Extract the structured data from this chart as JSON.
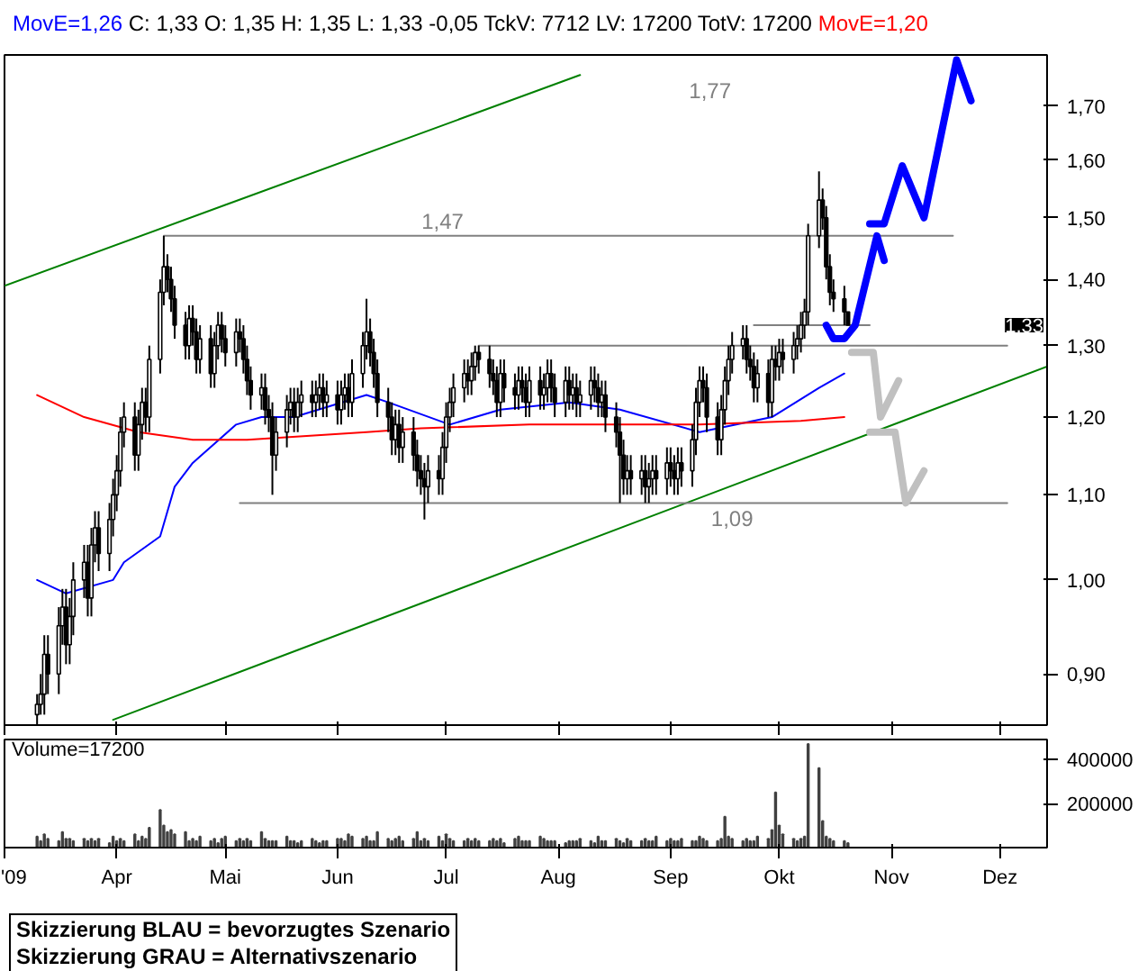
{
  "chart_data": [
    {
      "type": "candlestick",
      "title": "C: 1,33 O: 1,35 H: 1,35 L: 1,33 -0,05 TckV: 7712 LV: 17200 TotV: 17200",
      "log": true,
      "tick_labels": "y",
      "xlim": [
        "2009-03-01",
        "2009-12-14"
      ],
      "ylim": [
        0.85,
        1.8
      ],
      "xticks": [
        {
          "value": "2009-03-01",
          "label": null
        },
        {
          "value": "2009-04-01",
          "label": null
        },
        {
          "value": "2009-05-01",
          "label": null
        },
        {
          "value": "2009-06-01",
          "label": null
        },
        {
          "value": "2009-07-01",
          "label": null
        },
        {
          "value": "2009-08-01",
          "label": null
        },
        {
          "value": "2009-09-01",
          "label": null
        },
        {
          "value": "2009-10-01",
          "label": null
        },
        {
          "value": "2009-11-01",
          "label": null
        },
        {
          "value": "2009-12-01",
          "label": null
        }
      ],
      "yticks": [
        {
          "value": 0.9,
          "label": "0,90"
        },
        {
          "value": 1.0,
          "label": "1,00"
        },
        {
          "value": 1.1,
          "label": "1,10"
        },
        {
          "value": 1.2,
          "label": "1,20"
        },
        {
          "value": 1.3,
          "label": "1,30"
        },
        {
          "value": 1.4,
          "label": "1,40"
        },
        {
          "value": 1.5,
          "label": "1,50"
        },
        {
          "value": 1.6,
          "label": "1,60"
        },
        {
          "value": 1.7,
          "label": "1,70"
        }
      ],
      "x": [
        "2009-03-10",
        "2009-03-11",
        "2009-03-12",
        "2009-03-13",
        "2009-03-16",
        "2009-03-17",
        "2009-03-18",
        "2009-03-19",
        "2009-03-20",
        "2009-03-23",
        "2009-03-24",
        "2009-03-25",
        "2009-03-26",
        "2009-03-27",
        "2009-03-30",
        "2009-03-31",
        "2009-04-01",
        "2009-04-02",
        "2009-04-03",
        "2009-04-06",
        "2009-04-07",
        "2009-04-08",
        "2009-04-09",
        "2009-04-10",
        "2009-04-13",
        "2009-04-14",
        "2009-04-15",
        "2009-04-16",
        "2009-04-17",
        "2009-04-20",
        "2009-04-21",
        "2009-04-22",
        "2009-04-23",
        "2009-04-24",
        "2009-04-27",
        "2009-04-28",
        "2009-04-29",
        "2009-04-30",
        "2009-05-01",
        "2009-05-04",
        "2009-05-05",
        "2009-05-06",
        "2009-05-07",
        "2009-05-08",
        "2009-05-11",
        "2009-05-12",
        "2009-05-13",
        "2009-05-14",
        "2009-05-15",
        "2009-05-18",
        "2009-05-19",
        "2009-05-20",
        "2009-05-21",
        "2009-05-22",
        "2009-05-25",
        "2009-05-26",
        "2009-05-27",
        "2009-05-28",
        "2009-05-29",
        "2009-06-01",
        "2009-06-02",
        "2009-06-03",
        "2009-06-04",
        "2009-06-05",
        "2009-06-08",
        "2009-06-09",
        "2009-06-10",
        "2009-06-11",
        "2009-06-12",
        "2009-06-15",
        "2009-06-16",
        "2009-06-17",
        "2009-06-18",
        "2009-06-19",
        "2009-06-22",
        "2009-06-23",
        "2009-06-24",
        "2009-06-25",
        "2009-06-26",
        "2009-06-29",
        "2009-06-30",
        "2009-07-01",
        "2009-07-02",
        "2009-07-03",
        "2009-07-06",
        "2009-07-07",
        "2009-07-08",
        "2009-07-09",
        "2009-07-10",
        "2009-07-13",
        "2009-07-14",
        "2009-07-15",
        "2009-07-16",
        "2009-07-17",
        "2009-07-20",
        "2009-07-21",
        "2009-07-22",
        "2009-07-23",
        "2009-07-24",
        "2009-07-27",
        "2009-07-28",
        "2009-07-29",
        "2009-07-30",
        "2009-07-31",
        "2009-08-03",
        "2009-08-04",
        "2009-08-05",
        "2009-08-06",
        "2009-08-07",
        "2009-08-10",
        "2009-08-11",
        "2009-08-12",
        "2009-08-13",
        "2009-08-14",
        "2009-08-17",
        "2009-08-18",
        "2009-08-19",
        "2009-08-20",
        "2009-08-21",
        "2009-08-24",
        "2009-08-25",
        "2009-08-26",
        "2009-08-27",
        "2009-08-28",
        "2009-08-31",
        "2009-09-01",
        "2009-09-02",
        "2009-09-03",
        "2009-09-04",
        "2009-09-07",
        "2009-09-08",
        "2009-09-09",
        "2009-09-10",
        "2009-09-11",
        "2009-09-14",
        "2009-09-15",
        "2009-09-16",
        "2009-09-17",
        "2009-09-18",
        "2009-09-21",
        "2009-09-22",
        "2009-09-23",
        "2009-09-24",
        "2009-09-25",
        "2009-09-28",
        "2009-09-29",
        "2009-09-30",
        "2009-10-01",
        "2009-10-02",
        "2009-10-05",
        "2009-10-06",
        "2009-10-07",
        "2009-10-08",
        "2009-10-09",
        "2009-10-12",
        "2009-10-13",
        "2009-10-14",
        "2009-10-15",
        "2009-10-16",
        "2009-10-19",
        "2009-10-20"
      ],
      "ohlc": [
        [
          0.86,
          0.88,
          0.85,
          0.87
        ],
        [
          0.87,
          0.9,
          0.86,
          0.88
        ],
        [
          0.88,
          0.94,
          0.86,
          0.92
        ],
        [
          0.92,
          0.94,
          0.88,
          0.9
        ],
        [
          0.9,
          0.97,
          0.88,
          0.95
        ],
        [
          0.95,
          0.99,
          0.93,
          0.97
        ],
        [
          0.97,
          0.99,
          0.91,
          0.93
        ],
        [
          0.93,
          0.98,
          0.91,
          0.96
        ],
        [
          0.96,
          1.02,
          0.94,
          1.0
        ],
        [
          1.0,
          1.04,
          0.98,
          1.02
        ],
        [
          1.02,
          1.04,
          0.96,
          0.98
        ],
        [
          0.98,
          1.06,
          0.96,
          1.04
        ],
        [
          1.04,
          1.08,
          1.02,
          1.06
        ],
        [
          1.06,
          1.08,
          1.01,
          1.03
        ],
        [
          1.03,
          1.09,
          1.01,
          1.07
        ],
        [
          1.07,
          1.12,
          1.05,
          1.1
        ],
        [
          1.1,
          1.15,
          1.08,
          1.13
        ],
        [
          1.13,
          1.2,
          1.11,
          1.18
        ],
        [
          1.18,
          1.22,
          1.16,
          1.2
        ],
        [
          1.2,
          1.22,
          1.13,
          1.15
        ],
        [
          1.15,
          1.21,
          1.13,
          1.19
        ],
        [
          1.19,
          1.24,
          1.17,
          1.22
        ],
        [
          1.22,
          1.24,
          1.18,
          1.2
        ],
        [
          1.2,
          1.3,
          1.18,
          1.28
        ],
        [
          1.28,
          1.4,
          1.26,
          1.38
        ],
        [
          1.38,
          1.47,
          1.36,
          1.42
        ],
        [
          1.42,
          1.44,
          1.38,
          1.4
        ],
        [
          1.4,
          1.42,
          1.35,
          1.37
        ],
        [
          1.37,
          1.39,
          1.31,
          1.33
        ],
        [
          1.33,
          1.35,
          1.28,
          1.3
        ],
        [
          1.3,
          1.36,
          1.28,
          1.34
        ],
        [
          1.34,
          1.36,
          1.3,
          1.32
        ],
        [
          1.32,
          1.34,
          1.26,
          1.28
        ],
        [
          1.28,
          1.33,
          1.26,
          1.31
        ],
        [
          1.31,
          1.33,
          1.24,
          1.26
        ],
        [
          1.26,
          1.32,
          1.24,
          1.3
        ],
        [
          1.3,
          1.35,
          1.28,
          1.33
        ],
        [
          1.33,
          1.35,
          1.29,
          1.31
        ],
        [
          1.31,
          1.33,
          1.27,
          1.29
        ],
        [
          1.29,
          1.34,
          1.27,
          1.32
        ],
        [
          1.32,
          1.34,
          1.29,
          1.31
        ],
        [
          1.31,
          1.33,
          1.26,
          1.28
        ],
        [
          1.28,
          1.3,
          1.23,
          1.25
        ],
        [
          1.25,
          1.27,
          1.21,
          1.23
        ],
        [
          1.23,
          1.26,
          1.21,
          1.24
        ],
        [
          1.24,
          1.26,
          1.19,
          1.21
        ],
        [
          1.21,
          1.23,
          1.18,
          1.2
        ],
        [
          1.2,
          1.22,
          1.1,
          1.15
        ],
        [
          1.15,
          1.2,
          1.13,
          1.18
        ],
        [
          1.18,
          1.23,
          1.16,
          1.21
        ],
        [
          1.21,
          1.24,
          1.19,
          1.22
        ],
        [
          1.22,
          1.24,
          1.18,
          1.2
        ],
        [
          1.2,
          1.24,
          1.18,
          1.22
        ],
        [
          1.22,
          1.25,
          1.2,
          1.23
        ],
        [
          1.23,
          1.25,
          1.2,
          1.22
        ],
        [
          1.22,
          1.25,
          1.2,
          1.23
        ],
        [
          1.23,
          1.26,
          1.21,
          1.24
        ],
        [
          1.24,
          1.26,
          1.2,
          1.22
        ],
        [
          1.22,
          1.25,
          1.2,
          1.23
        ],
        [
          1.23,
          1.25,
          1.19,
          1.21
        ],
        [
          1.21,
          1.25,
          1.19,
          1.23
        ],
        [
          1.23,
          1.26,
          1.21,
          1.24
        ],
        [
          1.24,
          1.26,
          1.2,
          1.22
        ],
        [
          1.22,
          1.28,
          1.2,
          1.26
        ],
        [
          1.26,
          1.32,
          1.24,
          1.3
        ],
        [
          1.3,
          1.37,
          1.28,
          1.32
        ],
        [
          1.32,
          1.34,
          1.27,
          1.29
        ],
        [
          1.29,
          1.31,
          1.24,
          1.26
        ],
        [
          1.26,
          1.28,
          1.2,
          1.22
        ],
        [
          1.22,
          1.24,
          1.18,
          1.2
        ],
        [
          1.2,
          1.22,
          1.15,
          1.17
        ],
        [
          1.17,
          1.21,
          1.15,
          1.19
        ],
        [
          1.19,
          1.21,
          1.14,
          1.16
        ],
        [
          1.16,
          1.2,
          1.14,
          1.18
        ],
        [
          1.18,
          1.2,
          1.13,
          1.15
        ],
        [
          1.15,
          1.17,
          1.11,
          1.13
        ],
        [
          1.13,
          1.15,
          1.1,
          1.12
        ],
        [
          1.12,
          1.14,
          1.07,
          1.11
        ],
        [
          1.11,
          1.15,
          1.09,
          1.13
        ],
        [
          1.13,
          1.15,
          1.1,
          1.12
        ],
        [
          1.12,
          1.18,
          1.1,
          1.16
        ],
        [
          1.16,
          1.22,
          1.14,
          1.2
        ],
        [
          1.2,
          1.24,
          1.18,
          1.22
        ],
        [
          1.22,
          1.26,
          1.2,
          1.24
        ],
        [
          1.24,
          1.28,
          1.22,
          1.26
        ],
        [
          1.26,
          1.28,
          1.23,
          1.25
        ],
        [
          1.25,
          1.29,
          1.23,
          1.27
        ],
        [
          1.27,
          1.3,
          1.25,
          1.29
        ],
        [
          1.29,
          1.3,
          1.26,
          1.28
        ],
        [
          1.28,
          1.3,
          1.24,
          1.26
        ],
        [
          1.26,
          1.28,
          1.23,
          1.25
        ],
        [
          1.25,
          1.27,
          1.2,
          1.22
        ],
        [
          1.22,
          1.28,
          1.2,
          1.26
        ],
        [
          1.26,
          1.28,
          1.22,
          1.24
        ],
        [
          1.24,
          1.26,
          1.21,
          1.23
        ],
        [
          1.23,
          1.27,
          1.21,
          1.25
        ],
        [
          1.25,
          1.27,
          1.22,
          1.24
        ],
        [
          1.24,
          1.26,
          1.2,
          1.22
        ],
        [
          1.22,
          1.27,
          1.2,
          1.25
        ],
        [
          1.25,
          1.27,
          1.21,
          1.23
        ],
        [
          1.23,
          1.26,
          1.21,
          1.24
        ],
        [
          1.24,
          1.28,
          1.22,
          1.26
        ],
        [
          1.26,
          1.28,
          1.22,
          1.24
        ],
        [
          1.24,
          1.26,
          1.2,
          1.22
        ],
        [
          1.22,
          1.27,
          1.2,
          1.25
        ],
        [
          1.25,
          1.27,
          1.21,
          1.23
        ],
        [
          1.23,
          1.26,
          1.21,
          1.24
        ],
        [
          1.24,
          1.26,
          1.2,
          1.22
        ],
        [
          1.22,
          1.25,
          1.2,
          1.23
        ],
        [
          1.23,
          1.27,
          1.21,
          1.25
        ],
        [
          1.25,
          1.27,
          1.22,
          1.24
        ],
        [
          1.24,
          1.26,
          1.2,
          1.22
        ],
        [
          1.22,
          1.25,
          1.2,
          1.23
        ],
        [
          1.23,
          1.25,
          1.18,
          1.2
        ],
        [
          1.2,
          1.22,
          1.16,
          1.18
        ],
        [
          1.18,
          1.2,
          1.09,
          1.15
        ],
        [
          1.15,
          1.17,
          1.1,
          1.12
        ],
        [
          1.12,
          1.15,
          1.1,
          1.13
        ],
        [
          1.13,
          1.15,
          1.1,
          1.12
        ],
        [
          1.12,
          1.15,
          1.1,
          1.13
        ],
        [
          1.13,
          1.15,
          1.09,
          1.11
        ],
        [
          1.11,
          1.14,
          1.09,
          1.12
        ],
        [
          1.12,
          1.15,
          1.1,
          1.13
        ],
        [
          1.13,
          1.15,
          1.1,
          1.12
        ],
        [
          1.12,
          1.16,
          1.1,
          1.14
        ],
        [
          1.14,
          1.16,
          1.11,
          1.13
        ],
        [
          1.13,
          1.15,
          1.1,
          1.12
        ],
        [
          1.12,
          1.16,
          1.1,
          1.14
        ],
        [
          1.14,
          1.16,
          1.11,
          1.13
        ],
        [
          1.13,
          1.19,
          1.11,
          1.17
        ],
        [
          1.17,
          1.24,
          1.15,
          1.22
        ],
        [
          1.22,
          1.27,
          1.2,
          1.25
        ],
        [
          1.25,
          1.27,
          1.22,
          1.24
        ],
        [
          1.24,
          1.26,
          1.18,
          1.2
        ],
        [
          1.2,
          1.22,
          1.15,
          1.17
        ],
        [
          1.17,
          1.23,
          1.15,
          1.21
        ],
        [
          1.21,
          1.27,
          1.19,
          1.25
        ],
        [
          1.25,
          1.3,
          1.23,
          1.28
        ],
        [
          1.28,
          1.32,
          1.26,
          1.3
        ],
        [
          1.3,
          1.33,
          1.28,
          1.31
        ],
        [
          1.31,
          1.33,
          1.26,
          1.28
        ],
        [
          1.28,
          1.3,
          1.25,
          1.27
        ],
        [
          1.27,
          1.29,
          1.22,
          1.24
        ],
        [
          1.24,
          1.28,
          1.22,
          1.26
        ],
        [
          1.26,
          1.28,
          1.2,
          1.22
        ],
        [
          1.22,
          1.3,
          1.2,
          1.28
        ],
        [
          1.28,
          1.3,
          1.25,
          1.27
        ],
        [
          1.27,
          1.31,
          1.25,
          1.29
        ],
        [
          1.29,
          1.31,
          1.26,
          1.28
        ],
        [
          1.28,
          1.32,
          1.26,
          1.3
        ],
        [
          1.3,
          1.33,
          1.28,
          1.31
        ],
        [
          1.31,
          1.35,
          1.29,
          1.33
        ],
        [
          1.33,
          1.37,
          1.31,
          1.35
        ],
        [
          1.35,
          1.49,
          1.33,
          1.47
        ],
        [
          1.47,
          1.58,
          1.45,
          1.53
        ],
        [
          1.53,
          1.55,
          1.48,
          1.5
        ],
        [
          1.5,
          1.52,
          1.4,
          1.42
        ],
        [
          1.42,
          1.44,
          1.36,
          1.38
        ],
        [
          1.38,
          1.4,
          1.35,
          1.37
        ],
        [
          1.37,
          1.39,
          1.33,
          1.35
        ],
        [
          1.35,
          1.35,
          1.33,
          1.33
        ]
      ],
      "series": [
        {
          "type": "line",
          "name": "MovE=1,26",
          "color": "#0000ff",
          "x": [
            "2009-03-10",
            "2009-03-18",
            "2009-03-31",
            "2009-04-03",
            "2009-04-13",
            "2009-04-17",
            "2009-04-22",
            "2009-05-04",
            "2009-05-11",
            "2009-05-20",
            "2009-06-09",
            "2009-06-15",
            "2009-07-02",
            "2009-07-16",
            "2009-08-04",
            "2009-08-18",
            "2009-09-09",
            "2009-09-29",
            "2009-10-12",
            "2009-10-19"
          ],
          "values": [
            1.0,
            0.985,
            1.0,
            1.02,
            1.05,
            1.11,
            1.14,
            1.19,
            1.2,
            1.2,
            1.23,
            1.22,
            1.19,
            1.21,
            1.22,
            1.21,
            1.18,
            1.2,
            1.24,
            1.26
          ]
        },
        {
          "type": "line",
          "name": "MovE=1,20",
          "color": "#ff0000",
          "x": [
            "2009-03-10",
            "2009-03-23",
            "2009-04-07",
            "2009-04-22",
            "2009-05-07",
            "2009-06-09",
            "2009-06-24",
            "2009-07-24",
            "2009-09-09",
            "2009-10-07",
            "2009-10-19"
          ],
          "values": [
            1.23,
            1.2,
            1.18,
            1.17,
            1.17,
            1.18,
            1.185,
            1.19,
            1.19,
            1.195,
            1.2
          ]
        },
        {
          "type": "line",
          "color": "#008000",
          "x": [
            "2009-03-01",
            "2009-08-07"
          ],
          "values": [
            1.39,
            1.76
          ]
        },
        {
          "type": "line",
          "color": "#008000",
          "x": [
            "2009-03-31",
            "2009-12-14"
          ],
          "values": [
            0.855,
            1.27
          ]
        },
        {
          "type": "line",
          "color": "#808080",
          "x": [
            "2009-04-14",
            "2009-11-18"
          ],
          "values": [
            1.47,
            1.47
          ]
        },
        {
          "type": "line",
          "color": "#808080",
          "x": [
            "2009-07-10",
            "2009-12-03"
          ],
          "values": [
            1.3,
            1.3
          ]
        },
        {
          "type": "line",
          "color": "#808080",
          "x": [
            "2009-05-05",
            "2009-12-03"
          ],
          "values": [
            1.09,
            1.09
          ]
        },
        {
          "type": "line",
          "color": "#808080",
          "x": [
            "2009-09-24",
            "2009-10-26"
          ],
          "values": [
            1.33,
            1.33
          ]
        },
        {
          "type": "line",
          "color": "#0000ff",
          "x": [
            "2009-10-14",
            "2009-10-16",
            "2009-10-19",
            "2009-10-22",
            "2009-10-28",
            "2009-10-30"
          ],
          "values": [
            1.33,
            1.31,
            1.31,
            1.33,
            1.47,
            1.43
          ]
        },
        {
          "type": "line",
          "color": "#0000ff",
          "x": [
            "2009-10-26",
            "2009-10-30",
            "2009-11-04",
            "2009-11-10",
            "2009-11-19",
            "2009-11-23"
          ],
          "values": [
            1.49,
            1.49,
            1.59,
            1.5,
            1.79,
            1.71
          ]
        },
        {
          "type": "line",
          "color": "#c0c0c0",
          "x": [
            "2009-10-21",
            "2009-10-27",
            "2009-10-29",
            "2009-11-03"
          ],
          "values": [
            1.29,
            1.29,
            1.2,
            1.25
          ]
        },
        {
          "type": "line",
          "color": "#c0c0c0",
          "x": [
            "2009-10-26",
            "2009-11-02",
            "2009-11-05",
            "2009-11-10"
          ],
          "values": [
            1.18,
            1.18,
            1.09,
            1.13
          ]
        }
      ],
      "annotations": [
        "1,77",
        {
          "text": "1,47",
          "x": "2009-06-30",
          "y": 1.47
        },
        {
          "text": "1,09",
          "x": "2009-09-18",
          "y": 1.09
        },
        {
          "text": "1,33",
          "y": 1.33
        }
      ]
    },
    {
      "type": "bar",
      "title": "Volume=17200",
      "color": "#404040",
      "xlim": [
        "2009-03-01",
        "2009-12-14"
      ],
      "ylim": [
        0,
        490000
      ],
      "xticks": [
        {
          "value": "2009-03-01",
          "label": "'09"
        },
        {
          "value": "2009-04-01",
          "label": "Apr"
        },
        {
          "value": "2009-05-01",
          "label": "Mai"
        },
        {
          "value": "2009-06-01",
          "label": "Jun"
        },
        {
          "value": "2009-07-01",
          "label": "Jul"
        },
        {
          "value": "2009-08-01",
          "label": "Aug"
        },
        {
          "value": "2009-09-01",
          "label": "Sep"
        },
        {
          "value": "2009-10-01",
          "label": "Okt"
        },
        {
          "value": "2009-11-01",
          "label": "Nov"
        },
        {
          "value": "2009-12-01",
          "label": "Dez"
        }
      ],
      "yticks": [
        200000,
        400000
      ],
      "x": [
        "2009-03-10",
        "2009-03-11",
        "2009-03-12",
        "2009-03-13",
        "2009-03-16",
        "2009-03-17",
        "2009-03-18",
        "2009-03-19",
        "2009-03-20",
        "2009-03-23",
        "2009-03-24",
        "2009-03-25",
        "2009-03-26",
        "2009-03-27",
        "2009-03-30",
        "2009-03-31",
        "2009-04-01",
        "2009-04-02",
        "2009-04-03",
        "2009-04-06",
        "2009-04-07",
        "2009-04-08",
        "2009-04-09",
        "2009-04-10",
        "2009-04-13",
        "2009-04-14",
        "2009-04-15",
        "2009-04-16",
        "2009-04-17",
        "2009-04-20",
        "2009-04-21",
        "2009-04-22",
        "2009-04-23",
        "2009-04-24",
        "2009-04-27",
        "2009-04-28",
        "2009-04-29",
        "2009-04-30",
        "2009-05-01",
        "2009-05-04",
        "2009-05-05",
        "2009-05-06",
        "2009-05-07",
        "2009-05-08",
        "2009-05-11",
        "2009-05-12",
        "2009-05-13",
        "2009-05-14",
        "2009-05-15",
        "2009-05-18",
        "2009-05-19",
        "2009-05-20",
        "2009-05-21",
        "2009-05-22",
        "2009-05-25",
        "2009-05-26",
        "2009-05-27",
        "2009-05-28",
        "2009-05-29",
        "2009-06-01",
        "2009-06-02",
        "2009-06-03",
        "2009-06-04",
        "2009-06-05",
        "2009-06-08",
        "2009-06-09",
        "2009-06-10",
        "2009-06-11",
        "2009-06-12",
        "2009-06-15",
        "2009-06-16",
        "2009-06-17",
        "2009-06-18",
        "2009-06-19",
        "2009-06-22",
        "2009-06-23",
        "2009-06-24",
        "2009-06-25",
        "2009-06-26",
        "2009-06-29",
        "2009-06-30",
        "2009-07-01",
        "2009-07-02",
        "2009-07-03",
        "2009-07-06",
        "2009-07-07",
        "2009-07-08",
        "2009-07-09",
        "2009-07-10",
        "2009-07-13",
        "2009-07-14",
        "2009-07-15",
        "2009-07-16",
        "2009-07-17",
        "2009-07-20",
        "2009-07-21",
        "2009-07-22",
        "2009-07-23",
        "2009-07-24",
        "2009-07-27",
        "2009-07-28",
        "2009-07-29",
        "2009-07-30",
        "2009-07-31",
        "2009-08-03",
        "2009-08-04",
        "2009-08-05",
        "2009-08-06",
        "2009-08-07",
        "2009-08-10",
        "2009-08-11",
        "2009-08-12",
        "2009-08-13",
        "2009-08-14",
        "2009-08-17",
        "2009-08-18",
        "2009-08-19",
        "2009-08-20",
        "2009-08-21",
        "2009-08-24",
        "2009-08-25",
        "2009-08-26",
        "2009-08-27",
        "2009-08-28",
        "2009-08-31",
        "2009-09-01",
        "2009-09-02",
        "2009-09-03",
        "2009-09-04",
        "2009-09-07",
        "2009-09-08",
        "2009-09-09",
        "2009-09-10",
        "2009-09-11",
        "2009-09-14",
        "2009-09-15",
        "2009-09-16",
        "2009-09-17",
        "2009-09-18",
        "2009-09-21",
        "2009-09-22",
        "2009-09-23",
        "2009-09-24",
        "2009-09-25",
        "2009-09-28",
        "2009-09-29",
        "2009-09-30",
        "2009-10-01",
        "2009-10-02",
        "2009-10-05",
        "2009-10-06",
        "2009-10-07",
        "2009-10-08",
        "2009-10-09",
        "2009-10-12",
        "2009-10-13",
        "2009-10-14",
        "2009-10-15",
        "2009-10-16",
        "2009-10-19",
        "2009-10-20"
      ],
      "values": [
        50000,
        30000,
        60000,
        40000,
        30000,
        70000,
        40000,
        40000,
        30000,
        40000,
        30000,
        40000,
        30000,
        40000,
        20000,
        50000,
        30000,
        40000,
        30000,
        60000,
        30000,
        50000,
        40000,
        90000,
        170000,
        100000,
        70000,
        80000,
        60000,
        70000,
        30000,
        40000,
        30000,
        50000,
        30000,
        40000,
        20000,
        40000,
        50000,
        30000,
        40000,
        30000,
        40000,
        30000,
        70000,
        40000,
        30000,
        30000,
        30000,
        50000,
        30000,
        30000,
        20000,
        30000,
        40000,
        30000,
        20000,
        30000,
        30000,
        40000,
        40000,
        30000,
        60000,
        50000,
        40000,
        50000,
        30000,
        30000,
        70000,
        40000,
        30000,
        40000,
        50000,
        30000,
        40000,
        70000,
        30000,
        40000,
        30000,
        50000,
        30000,
        60000,
        40000,
        30000,
        30000,
        40000,
        30000,
        40000,
        30000,
        30000,
        40000,
        30000,
        40000,
        20000,
        40000,
        50000,
        30000,
        30000,
        30000,
        50000,
        40000,
        30000,
        30000,
        30000,
        20000,
        30000,
        30000,
        30000,
        40000,
        30000,
        20000,
        50000,
        30000,
        30000,
        40000,
        30000,
        20000,
        40000,
        30000,
        30000,
        40000,
        30000,
        30000,
        50000,
        30000,
        40000,
        30000,
        30000,
        40000,
        30000,
        30000,
        50000,
        40000,
        30000,
        30000,
        40000,
        140000,
        50000,
        40000,
        30000,
        40000,
        30000,
        30000,
        50000,
        40000,
        80000,
        250000,
        100000,
        60000,
        40000,
        30000,
        40000,
        50000,
        470000,
        360000,
        120000,
        50000,
        40000,
        30000,
        30000,
        20000
      ],
      "annotations": [
        "Skizzierung BLAU = bevorzugtes Szenario",
        "Skizzierung GRAU = Alternativszenario"
      ]
    }
  ]
}
